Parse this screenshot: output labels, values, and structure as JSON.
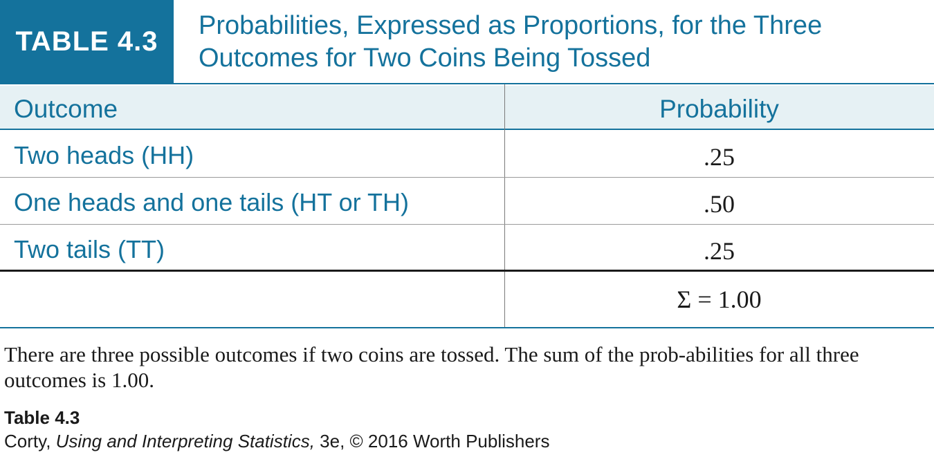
{
  "table": {
    "label": "TABLE 4.3",
    "caption": "Probabilities, Expressed as Proportions, for the Three Outcomes for Two Coins Being Tossed",
    "headers": {
      "outcome": "Outcome",
      "probability": "Probability"
    },
    "rows": [
      {
        "outcome": "Two heads (HH)",
        "probability": ".25"
      },
      {
        "outcome": "One heads and one tails (HT or TH)",
        "probability": ".50"
      },
      {
        "outcome": "Two tails (TT)",
        "probability": ".25"
      }
    ],
    "total": "Σ = 1.00",
    "note": "There are three possible outcomes if two coins are tossed. The sum of the prob-abilities for all three outcomes is 1.00."
  },
  "figure": {
    "label": "Table 4.3",
    "credit_author": "Corty, ",
    "credit_title": "Using and Interpreting Statistics,",
    "credit_rest": " 3e, © 2016 Worth Publishers"
  },
  "colors": {
    "accent": "#14729c",
    "header_bg": "#e6f1f4"
  }
}
